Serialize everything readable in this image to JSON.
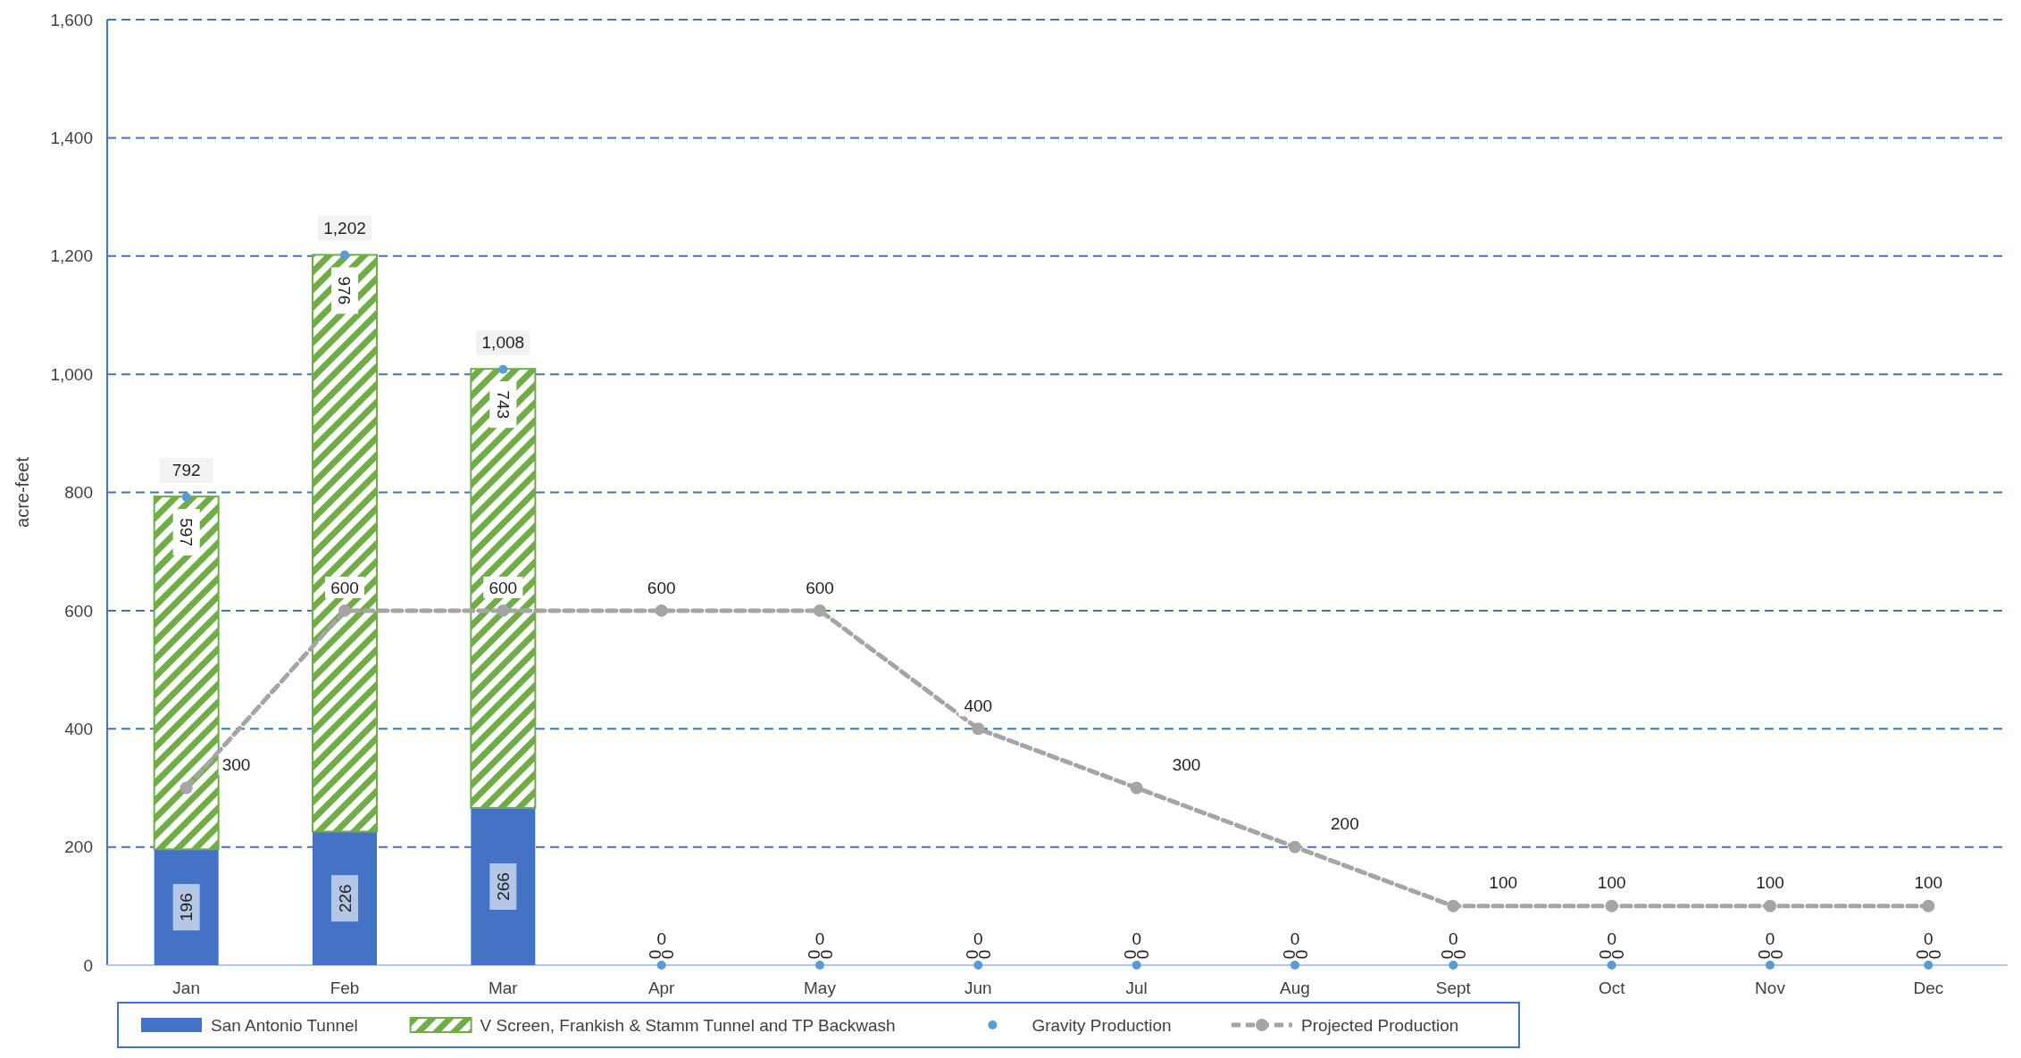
{
  "chart_data": {
    "type": "bar",
    "ylabel": "acre-feet",
    "categories": [
      "Jan",
      "Feb",
      "Mar",
      "Apr",
      "May",
      "Jun",
      "Jul",
      "Aug",
      "Sept",
      "Oct",
      "Nov",
      "Dec"
    ],
    "series": [
      {
        "name": "San Antonio Tunnel",
        "color": "#4472c4",
        "values": [
          196,
          226,
          266,
          0,
          0,
          0,
          0,
          0,
          0,
          0,
          0,
          0
        ]
      },
      {
        "name": "V Screen, Frankish & Stamm Tunnel and TP Backwash",
        "color": "#70ad47",
        "values": [
          597,
          976,
          743,
          0,
          0,
          0,
          0,
          0,
          0,
          0,
          0,
          0
        ]
      },
      {
        "name": "Gravity Production",
        "type": "scatter",
        "color": "#5b9bd5",
        "values": [
          792,
          1202,
          1008,
          0,
          0,
          0,
          0,
          0,
          0,
          0,
          0,
          0
        ],
        "value_labels": [
          "792",
          "1,202",
          "1,008",
          "0",
          "0",
          "0",
          "0",
          "0",
          "0",
          "0",
          "0",
          "0"
        ]
      },
      {
        "name": "Projected Production",
        "type": "line",
        "color": "#a5a5a5",
        "line_style": "dashed",
        "marker": "circle",
        "values": [
          300,
          600,
          600,
          600,
          600,
          400,
          300,
          200,
          100,
          100,
          100,
          100
        ]
      }
    ],
    "stacked": true,
    "ylim": [
      0,
      1600
    ],
    "yticks": [
      0,
      200,
      400,
      600,
      800,
      {
        "value": 1000,
        "label": "1,000"
      },
      {
        "value": 1200,
        "label": "1,200"
      },
      {
        "value": 1400,
        "label": "1,400"
      },
      {
        "value": 1600,
        "label": "1,600"
      }
    ],
    "grid": "y",
    "legend": "bottom",
    "data_labels": true
  }
}
